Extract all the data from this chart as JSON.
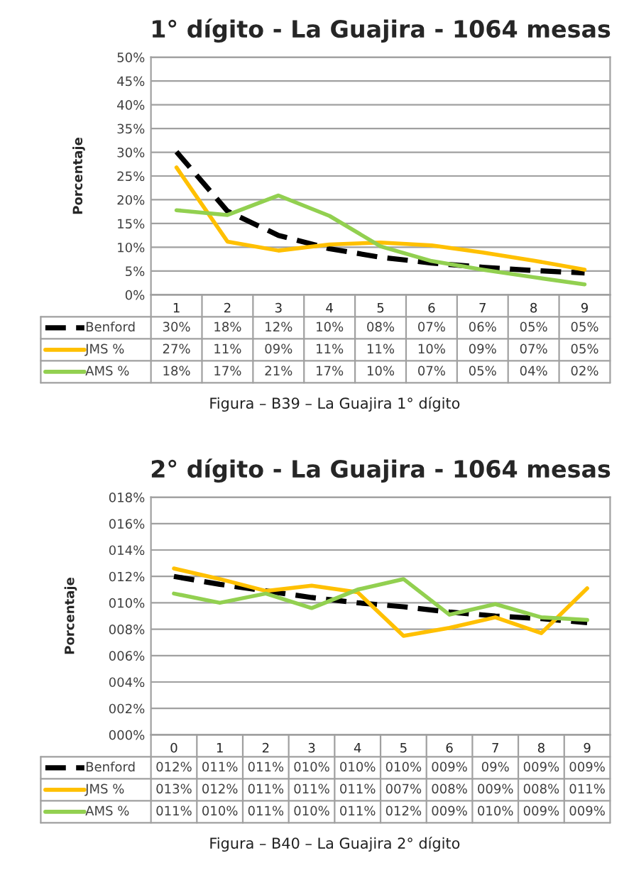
{
  "chart_data": [
    {
      "type": "line",
      "title": "1° dígito - La Guajira - 1064 mesas",
      "ylabel": "Porcentaje",
      "categories": [
        "1",
        "2",
        "3",
        "4",
        "5",
        "6",
        "7",
        "8",
        "9"
      ],
      "series": [
        {
          "name": "Benford",
          "color": "#000000",
          "line_style": "dashed",
          "values": [
            30.1,
            17.6,
            12.5,
            9.7,
            7.9,
            6.7,
            5.8,
            5.1,
            4.6
          ],
          "value_labels": [
            "30%",
            "18%",
            "12%",
            "10%",
            "08%",
            "07%",
            "06%",
            "05%",
            "05%"
          ]
        },
        {
          "name": "JMS %",
          "color": "#ffc000",
          "line_style": "solid",
          "values": [
            26.8,
            11.2,
            9.3,
            10.6,
            11.0,
            10.4,
            8.9,
            7.2,
            5.3
          ],
          "value_labels": [
            "27%",
            "11%",
            "09%",
            "11%",
            "11%",
            "10%",
            "09%",
            "07%",
            "05%"
          ]
        },
        {
          "name": "AMS %",
          "color": "#92d050",
          "line_style": "solid",
          "values": [
            17.8,
            16.8,
            20.9,
            16.6,
            10.2,
            7.1,
            5.3,
            3.7,
            2.2
          ],
          "value_labels": [
            "18%",
            "17%",
            "21%",
            "17%",
            "10%",
            "07%",
            "05%",
            "04%",
            "02%"
          ]
        }
      ],
      "ylim": [
        0,
        50
      ],
      "yticks": [
        {
          "value": 0,
          "label": "0%"
        },
        {
          "value": 5,
          "label": "5%"
        },
        {
          "value": 10,
          "label": "10%"
        },
        {
          "value": 15,
          "label": "15%"
        },
        {
          "value": 20,
          "label": "20%"
        },
        {
          "value": 25,
          "label": "25%"
        },
        {
          "value": 30,
          "label": "30%"
        },
        {
          "value": 35,
          "label": "35%"
        },
        {
          "value": 40,
          "label": "40%"
        },
        {
          "value": 45,
          "label": "45%"
        },
        {
          "value": 50,
          "label": "50%"
        }
      ],
      "grid": "y",
      "legend": "bottom",
      "annotations": [
        "Figura – B39 – La Guajira 1° dígito"
      ]
    },
    {
      "type": "line",
      "title": "2° dígito - La Guajira - 1064 mesas",
      "ylabel": "Porcentaje",
      "categories": [
        "0",
        "1",
        "2",
        "3",
        "4",
        "5",
        "6",
        "7",
        "8",
        "9"
      ],
      "series": [
        {
          "name": "Benford",
          "color": "#000000",
          "line_style": "dashed",
          "values": [
            12.0,
            11.4,
            10.9,
            10.4,
            10.0,
            9.7,
            9.3,
            9.0,
            8.8,
            8.5
          ],
          "value_labels": [
            "012%",
            "011%",
            "011%",
            "010%",
            "010%",
            "010%",
            "009%",
            "09%",
            "009%",
            "009%"
          ]
        },
        {
          "name": "JMS %",
          "color": "#ffc000",
          "line_style": "solid",
          "values": [
            12.6,
            11.8,
            10.9,
            11.3,
            10.8,
            7.5,
            8.1,
            8.9,
            7.7,
            11.1
          ],
          "value_labels": [
            "013%",
            "012%",
            "011%",
            "011%",
            "011%",
            "007%",
            "008%",
            "009%",
            "008%",
            "011%"
          ]
        },
        {
          "name": "AMS %",
          "color": "#92d050",
          "line_style": "solid",
          "values": [
            10.7,
            10.0,
            10.7,
            9.6,
            11.0,
            11.8,
            9.1,
            9.9,
            8.9,
            8.7
          ],
          "value_labels": [
            "011%",
            "010%",
            "011%",
            "010%",
            "011%",
            "012%",
            "009%",
            "010%",
            "009%",
            "009%"
          ]
        }
      ],
      "ylim": [
        0,
        18
      ],
      "yticks": [
        {
          "value": 0,
          "label": "000%"
        },
        {
          "value": 2,
          "label": "002%"
        },
        {
          "value": 4,
          "label": "004%"
        },
        {
          "value": 6,
          "label": "006%"
        },
        {
          "value": 8,
          "label": "008%"
        },
        {
          "value": 10,
          "label": "010%"
        },
        {
          "value": 12,
          "label": "012%"
        },
        {
          "value": 14,
          "label": "014%"
        },
        {
          "value": 16,
          "label": "016%"
        },
        {
          "value": 18,
          "label": "018%"
        }
      ],
      "grid": "y",
      "legend": "bottom",
      "annotations": [
        "Figura – B40 – La Guajira 2° dígito"
      ]
    }
  ]
}
